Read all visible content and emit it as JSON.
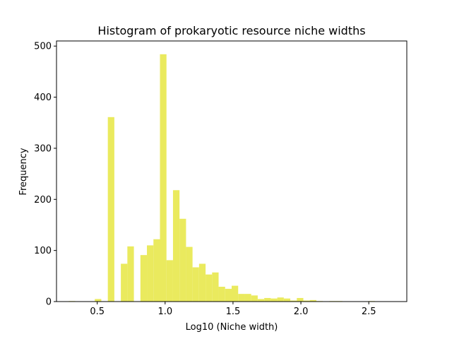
{
  "chart_data": {
    "type": "bar",
    "title": "Histogram of prokaryotic resource niche widths",
    "xlabel": "Log10 (Niche width)",
    "ylabel": "Frequency",
    "xlim": [
      0.2,
      2.78
    ],
    "ylim": [
      0,
      510
    ],
    "xticks": [
      0.5,
      1.0,
      1.5,
      2.0,
      2.5
    ],
    "xtick_labels": [
      "0.5",
      "1.0",
      "1.5",
      "2.0",
      "2.5"
    ],
    "yticks": [
      0,
      100,
      200,
      300,
      400,
      500
    ],
    "ytick_labels": [
      "0",
      "100",
      "200",
      "300",
      "400",
      "500"
    ],
    "bar_color": "#eaea5e",
    "bin_width": 0.048,
    "bins_start": [
      0.29,
      0.338,
      0.386,
      0.434,
      0.482,
      0.53,
      0.578,
      0.626,
      0.674,
      0.722,
      0.77,
      0.818,
      0.866,
      0.914,
      0.962,
      1.01,
      1.058,
      1.106,
      1.154,
      1.202,
      1.25,
      1.298,
      1.346,
      1.394,
      1.442,
      1.49,
      1.538,
      1.586,
      1.634,
      1.682,
      1.73,
      1.778,
      1.826,
      1.874,
      1.922,
      1.97,
      2.018,
      2.066,
      2.114,
      2.162,
      2.21,
      2.258,
      2.306,
      2.354,
      2.402,
      2.45,
      2.498,
      2.546,
      2.594,
      2.642,
      2.69
    ],
    "values": [
      1,
      0,
      0,
      0,
      5,
      0,
      361,
      0,
      74,
      108,
      0,
      91,
      110,
      122,
      484,
      81,
      218,
      162,
      107,
      67,
      74,
      53,
      57,
      29,
      25,
      31,
      15,
      15,
      12,
      5,
      7,
      6,
      8,
      6,
      2,
      7,
      2,
      3,
      1,
      0,
      1,
      1,
      0,
      0,
      0,
      0,
      1,
      0,
      0,
      0,
      0
    ]
  }
}
